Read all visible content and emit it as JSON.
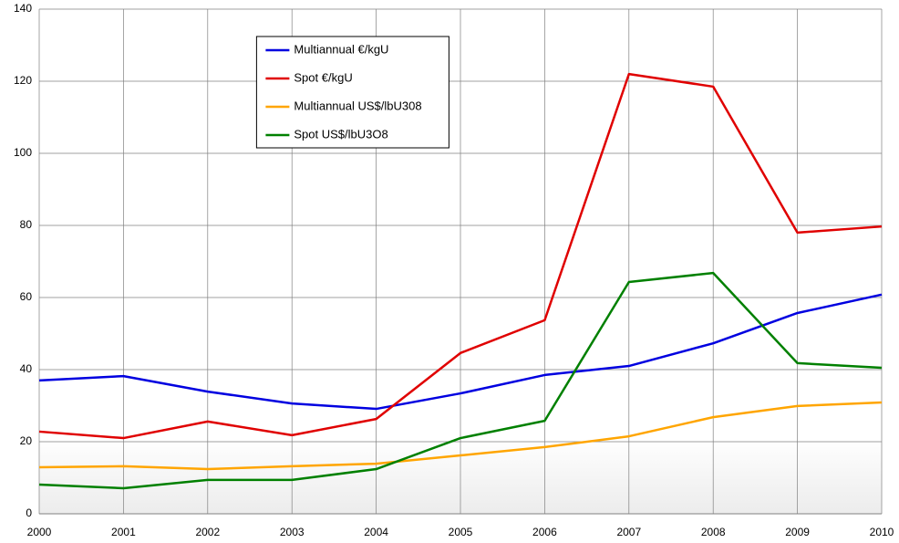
{
  "chart_data": {
    "type": "line",
    "x": [
      2000,
      2001,
      2002,
      2003,
      2004,
      2005,
      2006,
      2007,
      2008,
      2009,
      2010
    ],
    "xlim": [
      2000,
      2010
    ],
    "xticks": [
      2000,
      2001,
      2002,
      2003,
      2004,
      2005,
      2006,
      2007,
      2008,
      2009,
      2010
    ],
    "ylim": [
      0,
      140
    ],
    "yticks": [
      0,
      20,
      40,
      60,
      80,
      100,
      120,
      140
    ],
    "grid": true,
    "legend_position": "upper center",
    "series": [
      {
        "name": "Multiannual €/kgU",
        "color": "#0000e0",
        "values": [
          37.0,
          38.2,
          33.9,
          30.6,
          29.1,
          33.4,
          38.5,
          41.0,
          47.3,
          55.7,
          60.8
        ]
      },
      {
        "name": "Spot €/kgU",
        "color": "#e00000",
        "values": [
          22.8,
          21.0,
          25.6,
          21.8,
          26.3,
          44.6,
          53.7,
          122.0,
          118.5,
          78.0,
          79.7
        ]
      },
      {
        "name": "Multiannual US$/lbU308",
        "color": "#ffa500",
        "values": [
          12.9,
          13.2,
          12.4,
          13.2,
          13.9,
          16.2,
          18.5,
          21.5,
          26.8,
          29.9,
          30.9
        ]
      },
      {
        "name": "Spot US$/lbU3O8",
        "color": "#008000",
        "values": [
          8.1,
          7.1,
          9.4,
          9.4,
          12.4,
          21.0,
          25.8,
          64.3,
          66.8,
          41.8,
          40.5
        ]
      }
    ]
  }
}
